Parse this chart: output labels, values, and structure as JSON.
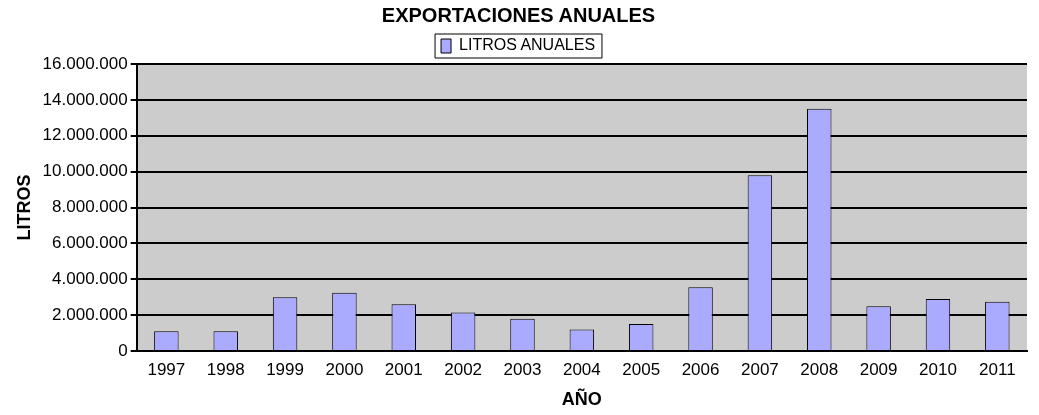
{
  "chart_data": {
    "type": "bar",
    "title": "EXPORTACIONES ANUALES",
    "xlabel": "AÑO",
    "ylabel": "LITROS",
    "categories": [
      "1997",
      "1998",
      "1999",
      "2000",
      "2001",
      "2002",
      "2003",
      "2004",
      "2005",
      "2006",
      "2007",
      "2008",
      "2009",
      "2010",
      "2011"
    ],
    "series": [
      {
        "name": "LITROS ANUALES",
        "color": "#aaaaff",
        "values": [
          1100000,
          1100000,
          3000000,
          3250000,
          2600000,
          2150000,
          1800000,
          1200000,
          1500000,
          3550000,
          9800000,
          13500000,
          2500000,
          2900000,
          2750000
        ]
      }
    ],
    "ylim": [
      0,
      16000000
    ],
    "yticks": [
      {
        "value": 0,
        "label": "0"
      },
      {
        "value": 2000000,
        "label": "2.000.000"
      },
      {
        "value": 4000000,
        "label": "4.000.000"
      },
      {
        "value": 6000000,
        "label": "6.000.000"
      },
      {
        "value": 8000000,
        "label": "8.000.000"
      },
      {
        "value": 10000000,
        "label": "10.000.000"
      },
      {
        "value": 12000000,
        "label": "12.000.000"
      },
      {
        "value": 14000000,
        "label": "14.000.000"
      },
      {
        "value": 16000000,
        "label": "16.000.000"
      }
    ],
    "grid": "y",
    "legend": "top"
  }
}
